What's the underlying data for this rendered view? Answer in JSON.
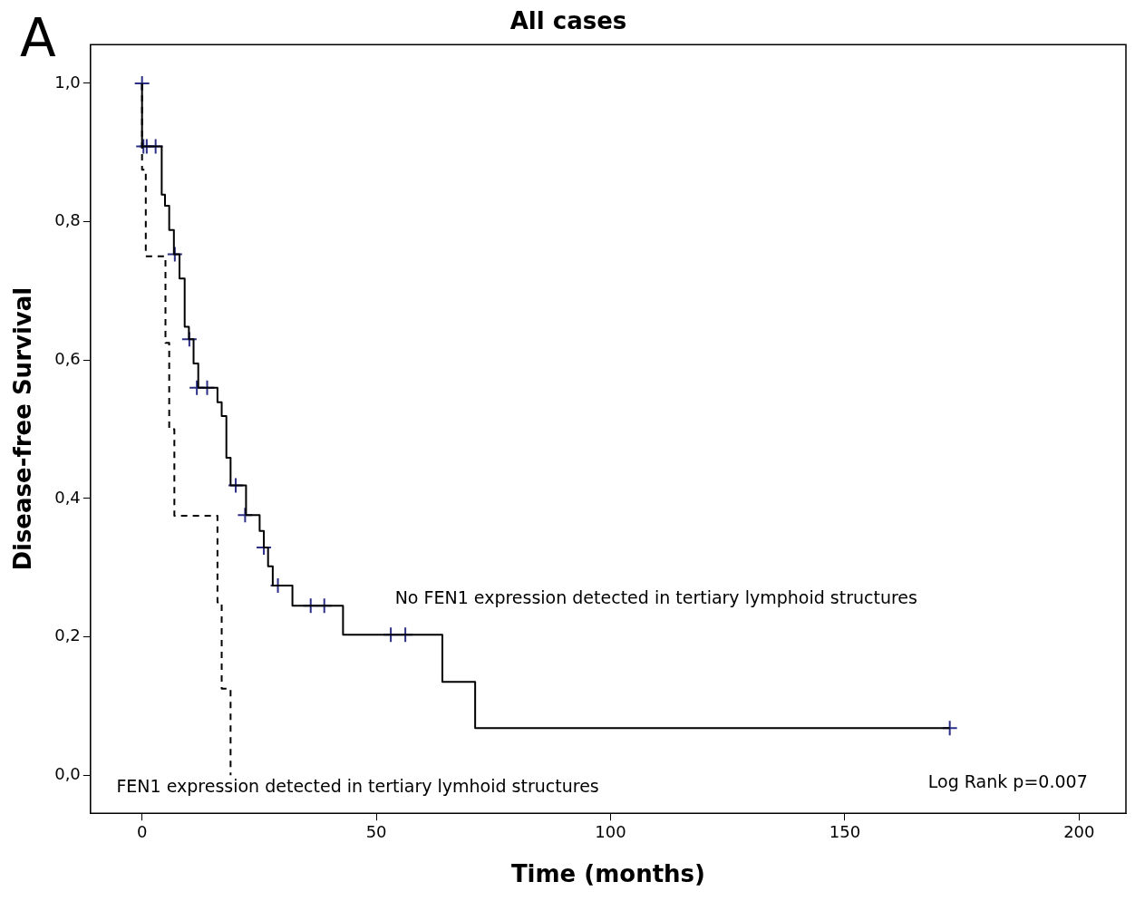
{
  "chart_data": {
    "type": "step",
    "title": "All cases",
    "xlabel": "Time (months)",
    "ylabel": "Disease-free Survival",
    "xlim": [
      -11,
      210
    ],
    "xticks": [
      0,
      50,
      100,
      150,
      200
    ],
    "ylim": [
      -0.055,
      1.056
    ],
    "yticks": [
      {
        "value": 0,
        "label": "0,0"
      },
      {
        "value": 0.2,
        "label": "0,2"
      },
      {
        "value": 0.4,
        "label": "0,4"
      },
      {
        "value": 0.6,
        "label": "0,6"
      },
      {
        "value": 0.8,
        "label": "0,8"
      },
      {
        "value": 1,
        "label": "1,0"
      }
    ],
    "grid": false,
    "legend": false,
    "series": [
      {
        "color": "#000000",
        "line_style": "solid",
        "marker": "none",
        "x": [
          0,
          0,
          4.2,
          4.9,
          5.8,
          6.8,
          8.0,
          9.1,
          10.0,
          11.0,
          12.0,
          16.1,
          17.0,
          18.0,
          18.9,
          22.2,
          25.1,
          26.0,
          26.9,
          27.9,
          32.1,
          42.9,
          64.1,
          71.1,
          172.4
        ],
        "values": [
          1,
          0.909,
          0.839,
          0.823,
          0.788,
          0.753,
          0.718,
          0.648,
          0.63,
          0.595,
          0.56,
          0.539,
          0.519,
          0.459,
          0.419,
          0.376,
          0.353,
          0.329,
          0.302,
          0.274,
          0.245,
          0.203,
          0.135,
          0.068,
          0.068
        ]
      },
      {
        "color": "#000000",
        "line_style": "dashed",
        "marker": "none",
        "x": [
          0,
          0,
          0.8,
          5.0,
          5.8,
          6.9,
          16.1,
          17.0,
          18.9
        ],
        "values": [
          1,
          0.875,
          0.75,
          0.625,
          0.5,
          0.375,
          0.25,
          0.125,
          0
        ]
      },
      {
        "type": "scatter",
        "color": "#2b2f86",
        "marker": "cross",
        "x": [
          0,
          0.3,
          1.0,
          2.9,
          7.0,
          10.1,
          11.7,
          13.9,
          20.0,
          22.0,
          26.0,
          29.0,
          36.0,
          38.9,
          53.1,
          56.2,
          172.4
        ],
        "values": [
          1,
          0.909,
          0.909,
          0.909,
          0.753,
          0.63,
          0.56,
          0.56,
          0.419,
          0.376,
          0.329,
          0.274,
          0.245,
          0.245,
          0.203,
          0.203,
          0.068
        ]
      }
    ],
    "annotations": [
      "A",
      "Log Rank p=0.007",
      "No FEN1 expression detected in tertiary lymphoid structures",
      "FEN1 expression detected in tertiary lymhoid structures"
    ]
  }
}
